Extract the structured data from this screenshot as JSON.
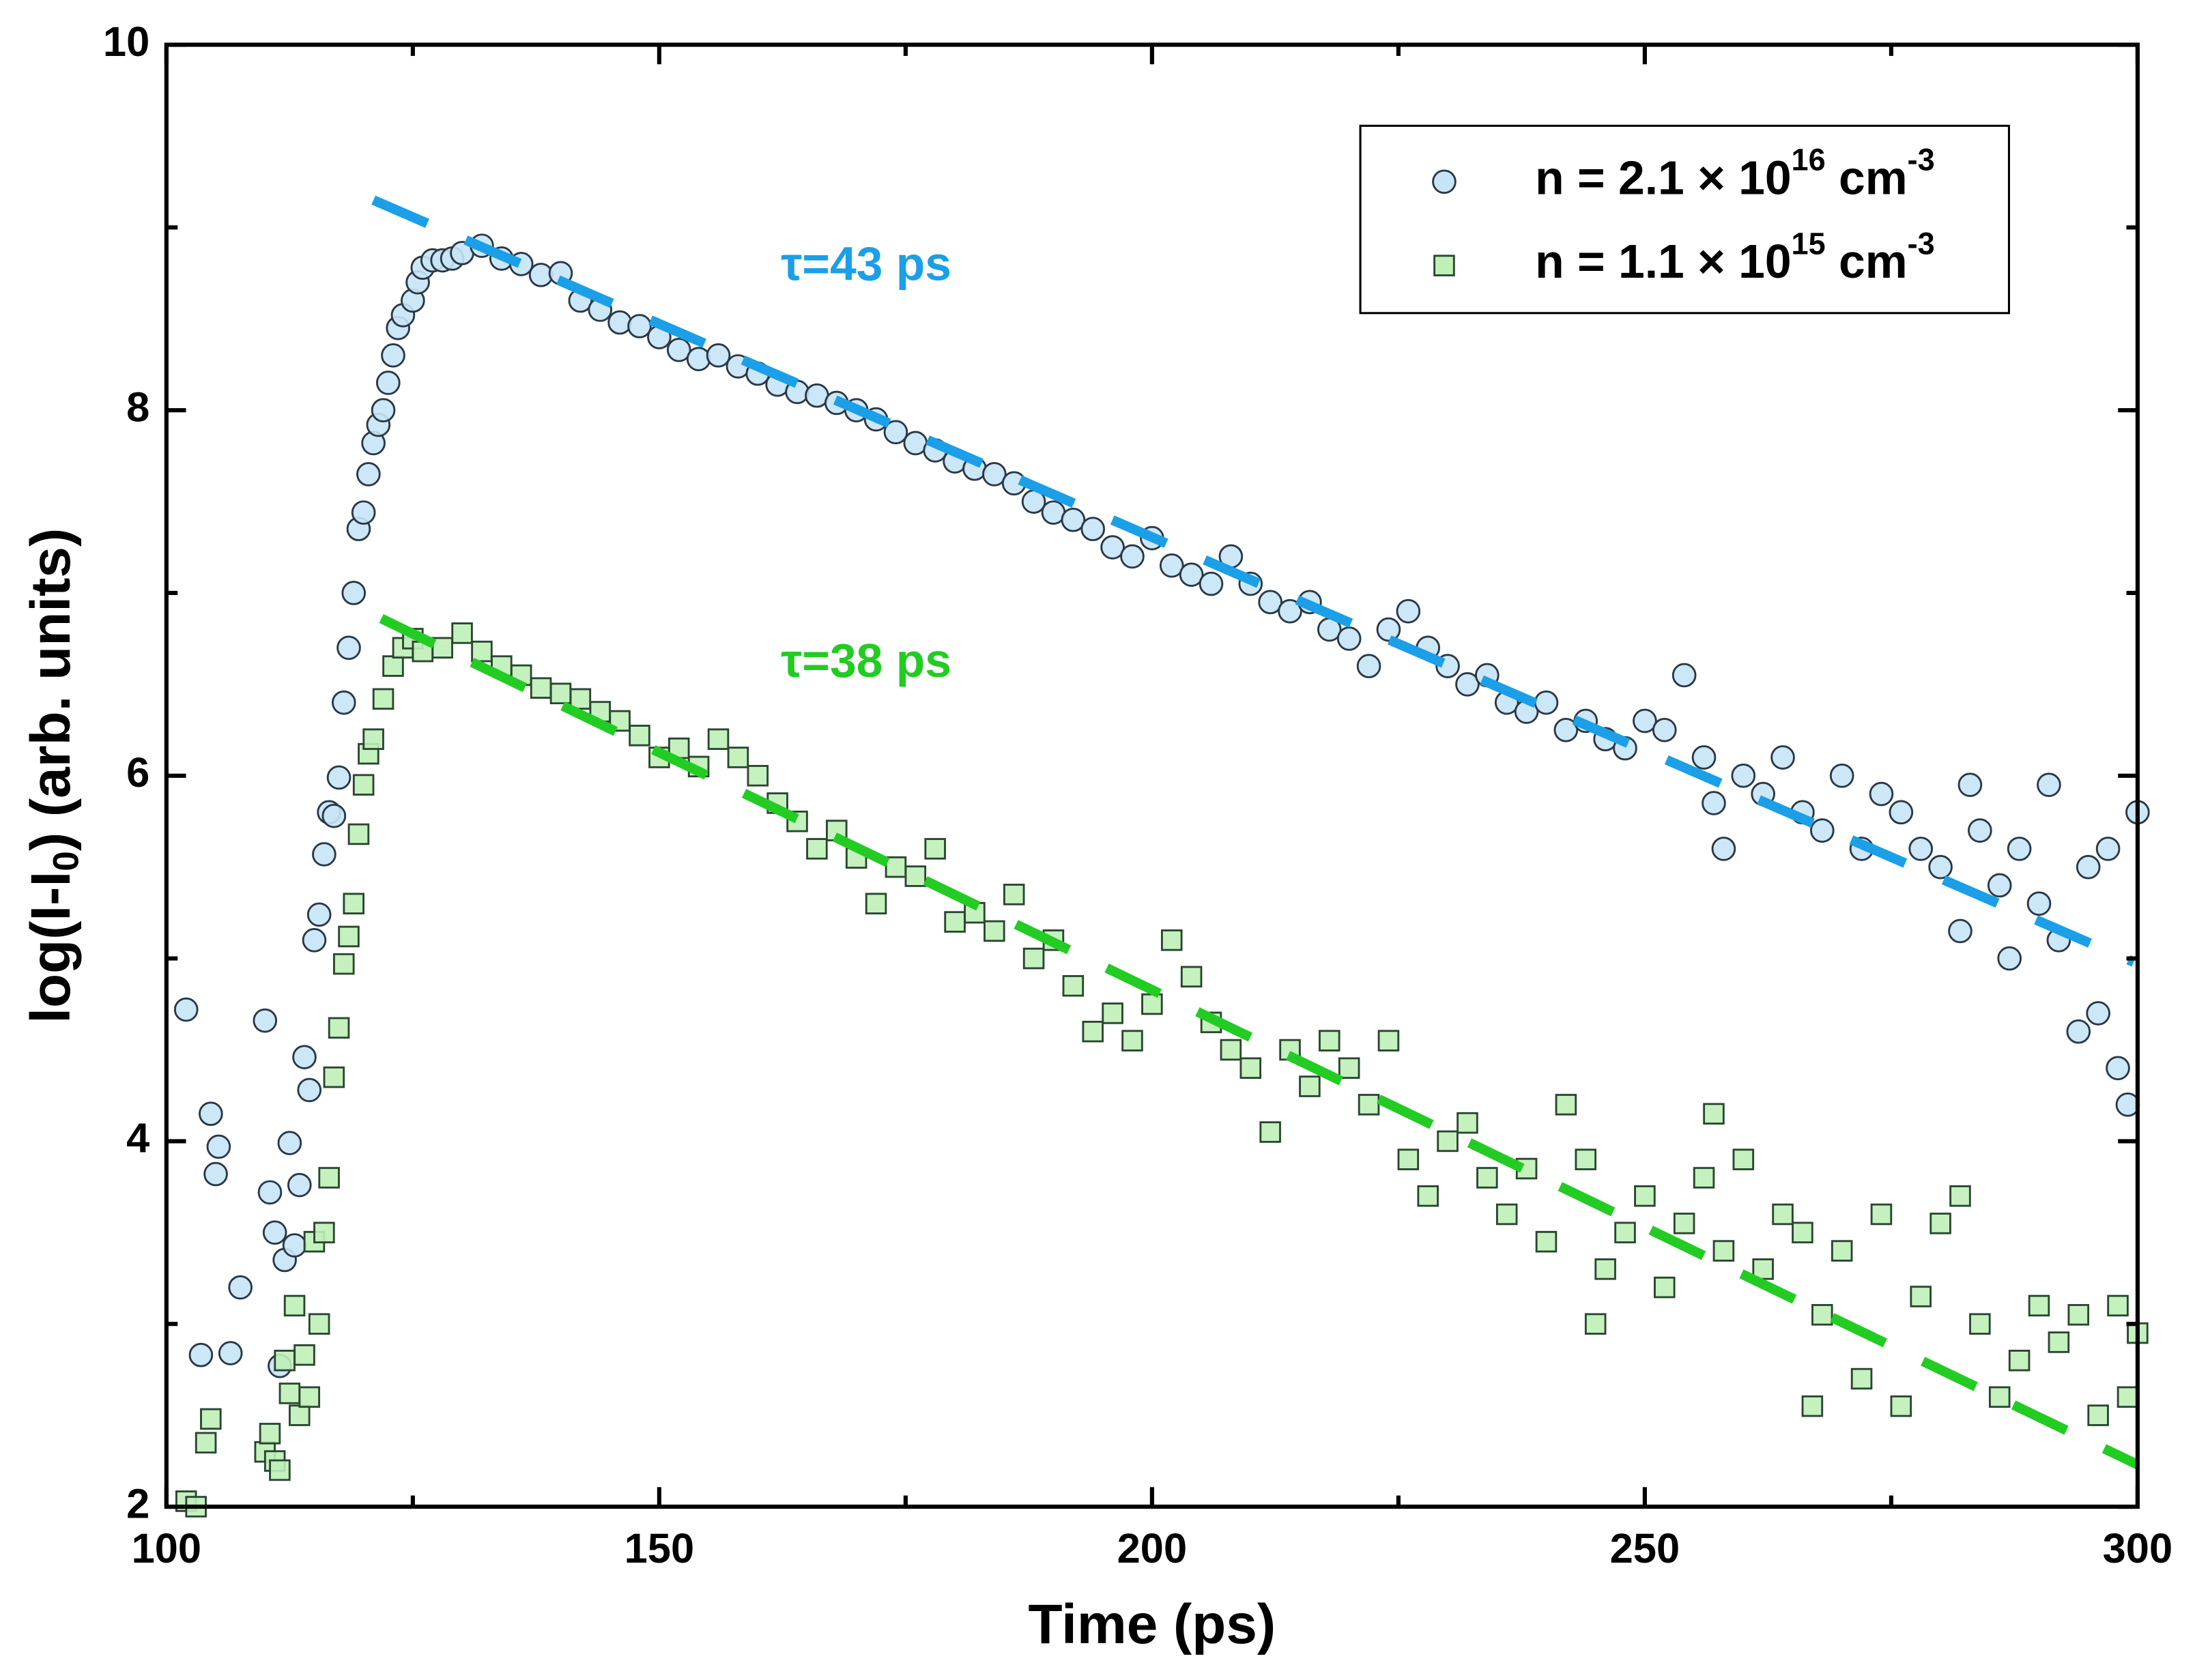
{
  "chart_data": {
    "type": "scatter",
    "xlabel": "Time (ps)",
    "ylabel_parts": [
      "log(I-I",
      "0",
      ") (arb. units)"
    ],
    "xlim": [
      100,
      300
    ],
    "xticks": [
      100,
      150,
      200,
      250,
      300
    ],
    "xminorticks": [
      125,
      175,
      225,
      275
    ],
    "ylim": [
      2,
      10
    ],
    "yticks": [
      2,
      4,
      6,
      8,
      10
    ],
    "yminorticks": [
      3,
      5,
      7,
      9
    ],
    "legend": "upper right",
    "series": [
      {
        "name": [
          "n = 2.1 × 10",
          "16",
          " cm",
          "-3"
        ],
        "marker": "circle",
        "color": "#c6e4f6",
        "edgecolor": "#2a3846",
        "x": [
          102,
          103.5,
          104.5,
          105.3,
          105,
          106.5,
          107.5,
          110,
          110.5,
          111,
          111.5,
          112,
          112.5,
          113,
          113.5,
          114,
          114.5,
          115,
          115.5,
          116,
          116.5,
          117,
          117.5,
          118,
          118.5,
          119,
          119.5,
          120,
          120.5,
          121,
          121.5,
          122,
          122.5,
          123,
          123.5,
          124,
          125,
          125.5,
          126,
          127,
          128,
          129,
          130,
          132,
          134,
          136,
          138,
          140,
          142,
          144,
          146,
          148,
          150,
          152,
          154,
          156,
          158,
          160,
          162,
          164,
          166,
          168,
          170,
          172,
          174,
          176,
          178,
          180,
          182,
          184,
          186,
          188,
          190,
          192,
          194,
          196,
          198,
          200,
          202,
          204,
          206,
          208,
          210,
          212,
          214,
          216,
          218,
          220,
          222,
          224,
          226,
          228,
          230,
          232,
          234,
          236,
          238,
          240,
          242,
          244,
          246,
          248,
          250,
          252,
          254,
          256,
          257,
          258,
          260,
          262,
          264,
          266,
          268,
          270,
          272,
          274,
          276,
          278,
          280,
          282,
          283,
          284,
          286,
          287,
          288,
          290,
          291,
          292,
          294,
          295,
          296,
          297,
          298,
          299,
          300
        ],
        "values": [
          4.72,
          2.83,
          4.15,
          3.97,
          3.82,
          2.84,
          3.2,
          4.66,
          3.72,
          3.5,
          2.77,
          3.35,
          3.99,
          3.43,
          3.76,
          4.46,
          4.28,
          5.1,
          5.24,
          5.57,
          5.8,
          5.78,
          5.99,
          6.4,
          6.7,
          7.0,
          7.35,
          7.44,
          7.65,
          7.82,
          7.92,
          8.0,
          8.15,
          8.3,
          8.45,
          8.52,
          8.6,
          8.7,
          8.78,
          8.82,
          8.82,
          8.83,
          8.86,
          8.9,
          8.83,
          8.8,
          8.74,
          8.75,
          8.6,
          8.55,
          8.48,
          8.46,
          8.4,
          8.33,
          8.28,
          8.3,
          8.24,
          8.2,
          8.14,
          8.1,
          8.08,
          8.04,
          8.0,
          7.95,
          7.88,
          7.82,
          7.78,
          7.72,
          7.68,
          7.65,
          7.6,
          7.5,
          7.44,
          7.4,
          7.35,
          7.25,
          7.2,
          7.3,
          7.15,
          7.1,
          7.05,
          7.2,
          7.05,
          6.95,
          6.9,
          6.95,
          6.8,
          6.75,
          6.6,
          6.8,
          6.9,
          6.7,
          6.6,
          6.5,
          6.55,
          6.4,
          6.35,
          6.4,
          6.25,
          6.3,
          6.2,
          6.15,
          6.3,
          6.25,
          6.55,
          6.1,
          5.85,
          5.6,
          6.0,
          5.9,
          6.1,
          5.8,
          5.7,
          6.0,
          5.6,
          5.9,
          5.8,
          5.6,
          5.5,
          5.15,
          5.95,
          5.7,
          5.4,
          5.0,
          5.6,
          5.3,
          5.95,
          5.1,
          4.6,
          5.5,
          4.7,
          5.6,
          4.4,
          4.2,
          5.8
        ]
      },
      {
        "name": [
          "n = 1.1 × 10",
          "15",
          " cm",
          "-3"
        ],
        "marker": "square",
        "color": "#bff0b8",
        "edgecolor": "#2a4630",
        "x": [
          102,
          103,
          104,
          104.5,
          110,
          110.5,
          111,
          111.5,
          112,
          112.5,
          113,
          113.5,
          114,
          114.5,
          115,
          115.5,
          116,
          116.5,
          117,
          117.5,
          118,
          118.5,
          119,
          119.5,
          120,
          120.5,
          121,
          122,
          123,
          124,
          125,
          126,
          128,
          130,
          132,
          134,
          136,
          138,
          140,
          142,
          144,
          146,
          148,
          150,
          152,
          154,
          156,
          158,
          160,
          162,
          164,
          166,
          168,
          170,
          172,
          174,
          176,
          178,
          180,
          182,
          184,
          186,
          188,
          190,
          192,
          194,
          196,
          198,
          200,
          202,
          204,
          206,
          208,
          210,
          212,
          214,
          216,
          218,
          220,
          222,
          224,
          226,
          228,
          230,
          232,
          234,
          236,
          238,
          240,
          242,
          244,
          245,
          246,
          248,
          250,
          252,
          254,
          256,
          257,
          258,
          260,
          262,
          264,
          266,
          267,
          268,
          270,
          272,
          274,
          276,
          278,
          280,
          282,
          284,
          286,
          288,
          290,
          292,
          294,
          296,
          298,
          299,
          300
        ],
        "values": [
          2.03,
          2.0,
          2.35,
          2.48,
          2.3,
          2.4,
          2.25,
          2.2,
          2.8,
          2.62,
          3.1,
          2.5,
          2.83,
          2.6,
          3.45,
          3.0,
          3.5,
          3.8,
          4.35,
          4.62,
          4.97,
          5.12,
          5.3,
          5.68,
          5.95,
          6.12,
          6.2,
          6.42,
          6.6,
          6.7,
          6.75,
          6.68,
          6.7,
          6.78,
          6.68,
          6.6,
          6.55,
          6.48,
          6.45,
          6.42,
          6.35,
          6.3,
          6.22,
          6.1,
          6.15,
          6.05,
          6.2,
          6.1,
          6.0,
          5.85,
          5.75,
          5.6,
          5.7,
          5.55,
          5.3,
          5.5,
          5.45,
          5.6,
          5.2,
          5.25,
          5.15,
          5.35,
          5.0,
          5.1,
          4.85,
          4.6,
          4.7,
          4.55,
          4.75,
          5.1,
          4.9,
          4.65,
          4.5,
          4.4,
          4.05,
          4.5,
          4.3,
          4.55,
          4.4,
          4.2,
          4.55,
          3.9,
          3.7,
          4.0,
          4.1,
          3.8,
          3.6,
          3.85,
          3.45,
          4.2,
          3.9,
          3.0,
          3.3,
          3.5,
          3.7,
          3.2,
          3.55,
          3.8,
          4.15,
          3.4,
          3.9,
          3.3,
          3.6,
          3.5,
          2.55,
          3.05,
          3.4,
          2.7,
          3.6,
          2.55,
          3.15,
          3.55,
          3.7,
          3.0,
          2.6,
          2.8,
          3.1,
          2.9,
          3.05,
          2.5,
          3.1,
          2.6,
          2.95
        ]
      }
    ],
    "fits": [
      {
        "color": "#1a9fe8",
        "x": [
          121,
          299.6
        ],
        "values": [
          9.15,
          4.98
        ]
      },
      {
        "color": "#22cc22",
        "x": [
          121.8,
          300
        ],
        "values": [
          6.86,
          2.23
        ]
      }
    ],
    "annotations": [
      {
        "text": "τ=43 ps",
        "x": 171,
        "y": 8.78,
        "color": "#1a9fe8"
      },
      {
        "text": "τ=38 ps",
        "x": 171,
        "y": 6.61,
        "color": "#22cc22"
      }
    ]
  }
}
